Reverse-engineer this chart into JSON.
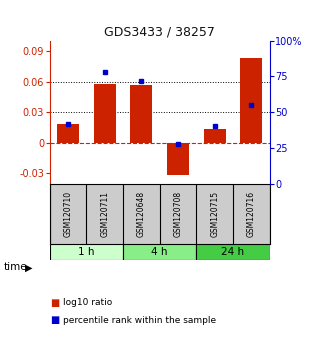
{
  "title": "GDS3433 / 38257",
  "samples": [
    "GSM120710",
    "GSM120711",
    "GSM120648",
    "GSM120708",
    "GSM120715",
    "GSM120716"
  ],
  "log10_ratio": [
    0.018,
    0.058,
    0.057,
    -0.032,
    0.013,
    0.083
  ],
  "percentile_rank": [
    42,
    78,
    72,
    28,
    40,
    55
  ],
  "groups": [
    {
      "label": "1 h",
      "indices": [
        0,
        1
      ],
      "color": "#ccffcc"
    },
    {
      "label": "4 h",
      "indices": [
        2,
        3
      ],
      "color": "#88ee88"
    },
    {
      "label": "24 h",
      "indices": [
        4,
        5
      ],
      "color": "#44cc44"
    }
  ],
  "bar_color": "#cc2200",
  "dot_color": "#0000cc",
  "ylim_left": [
    -0.04,
    0.1
  ],
  "ylim_right": [
    0,
    100
  ],
  "yticks_left": [
    -0.03,
    0.0,
    0.03,
    0.06,
    0.09
  ],
  "yticks_right": [
    0,
    25,
    50,
    75,
    100
  ],
  "ytick_labels_left": [
    "-0.03",
    "0",
    "0.03",
    "0.06",
    "0.09"
  ],
  "ytick_labels_right": [
    "0",
    "25",
    "50",
    "75",
    "100%"
  ],
  "hlines": [
    0.03,
    0.06
  ],
  "zero_line_color": "#cc2200",
  "hline_color": "#000000",
  "bg_color": "#ffffff",
  "plot_bg": "#ffffff",
  "bar_width": 0.6,
  "label_red": "log10 ratio",
  "label_blue": "percentile rank within the sample"
}
